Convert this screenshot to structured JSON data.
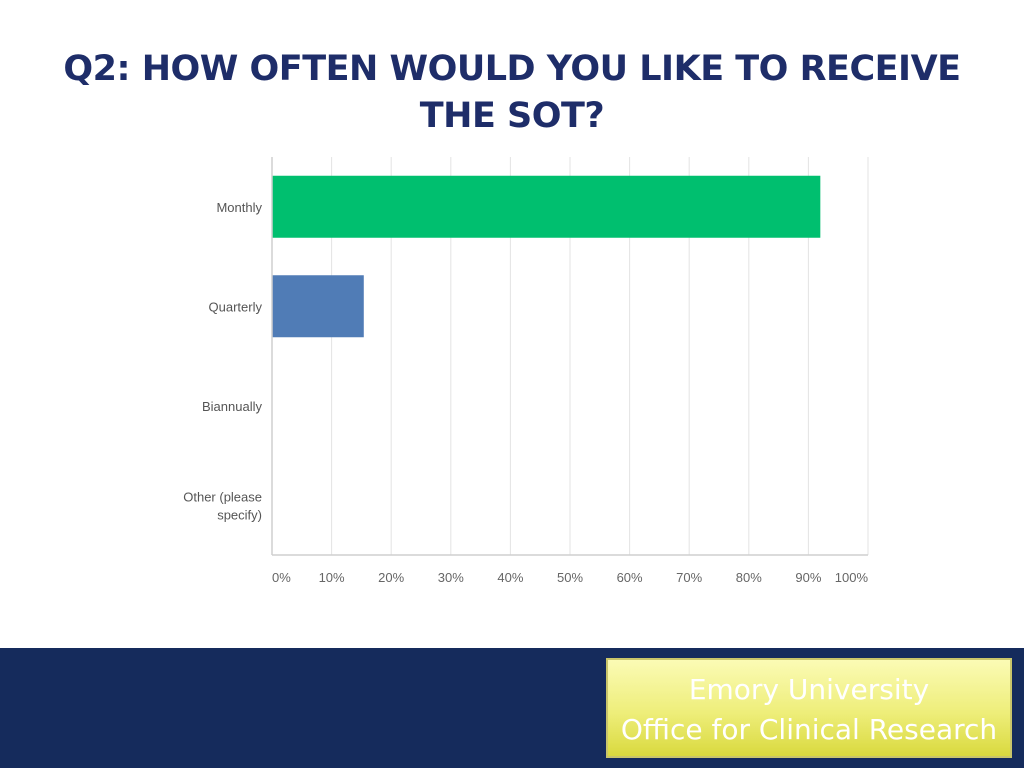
{
  "slide": {
    "title_line1": "Q2: HOW OFTEN WOULD YOU LIKE TO RECEIVE",
    "title_line2": "THE SOT?"
  },
  "footer": {
    "org_line1": "Emory University",
    "org_line2": "Office for Clinical Research"
  },
  "colors": {
    "title": "#1e2d69",
    "footer_bg": "#152b5c",
    "bar_monthly": "#00bf6f",
    "bar_default": "#507cb6"
  },
  "chart_data": {
    "type": "bar",
    "orientation": "horizontal",
    "title": "",
    "xlabel": "",
    "ylabel": "",
    "categories": [
      "Monthly",
      "Quarterly",
      "Biannually",
      "Other (please specify)"
    ],
    "category_lines": [
      [
        "Monthly"
      ],
      [
        "Quarterly"
      ],
      [
        "Biannually"
      ],
      [
        "Other (please",
        "specify)"
      ]
    ],
    "values": [
      92,
      15.4,
      0,
      0
    ],
    "bar_colors": [
      "#00bf6f",
      "#507cb6",
      "#507cb6",
      "#507cb6"
    ],
    "xlim": [
      0,
      100
    ],
    "ticks": [
      0,
      10,
      20,
      30,
      40,
      50,
      60,
      70,
      80,
      90,
      100
    ],
    "tick_labels": [
      "0%",
      "10%",
      "20%",
      "30%",
      "40%",
      "50%",
      "60%",
      "70%",
      "80%",
      "90%",
      "100%"
    ],
    "grid": true
  }
}
